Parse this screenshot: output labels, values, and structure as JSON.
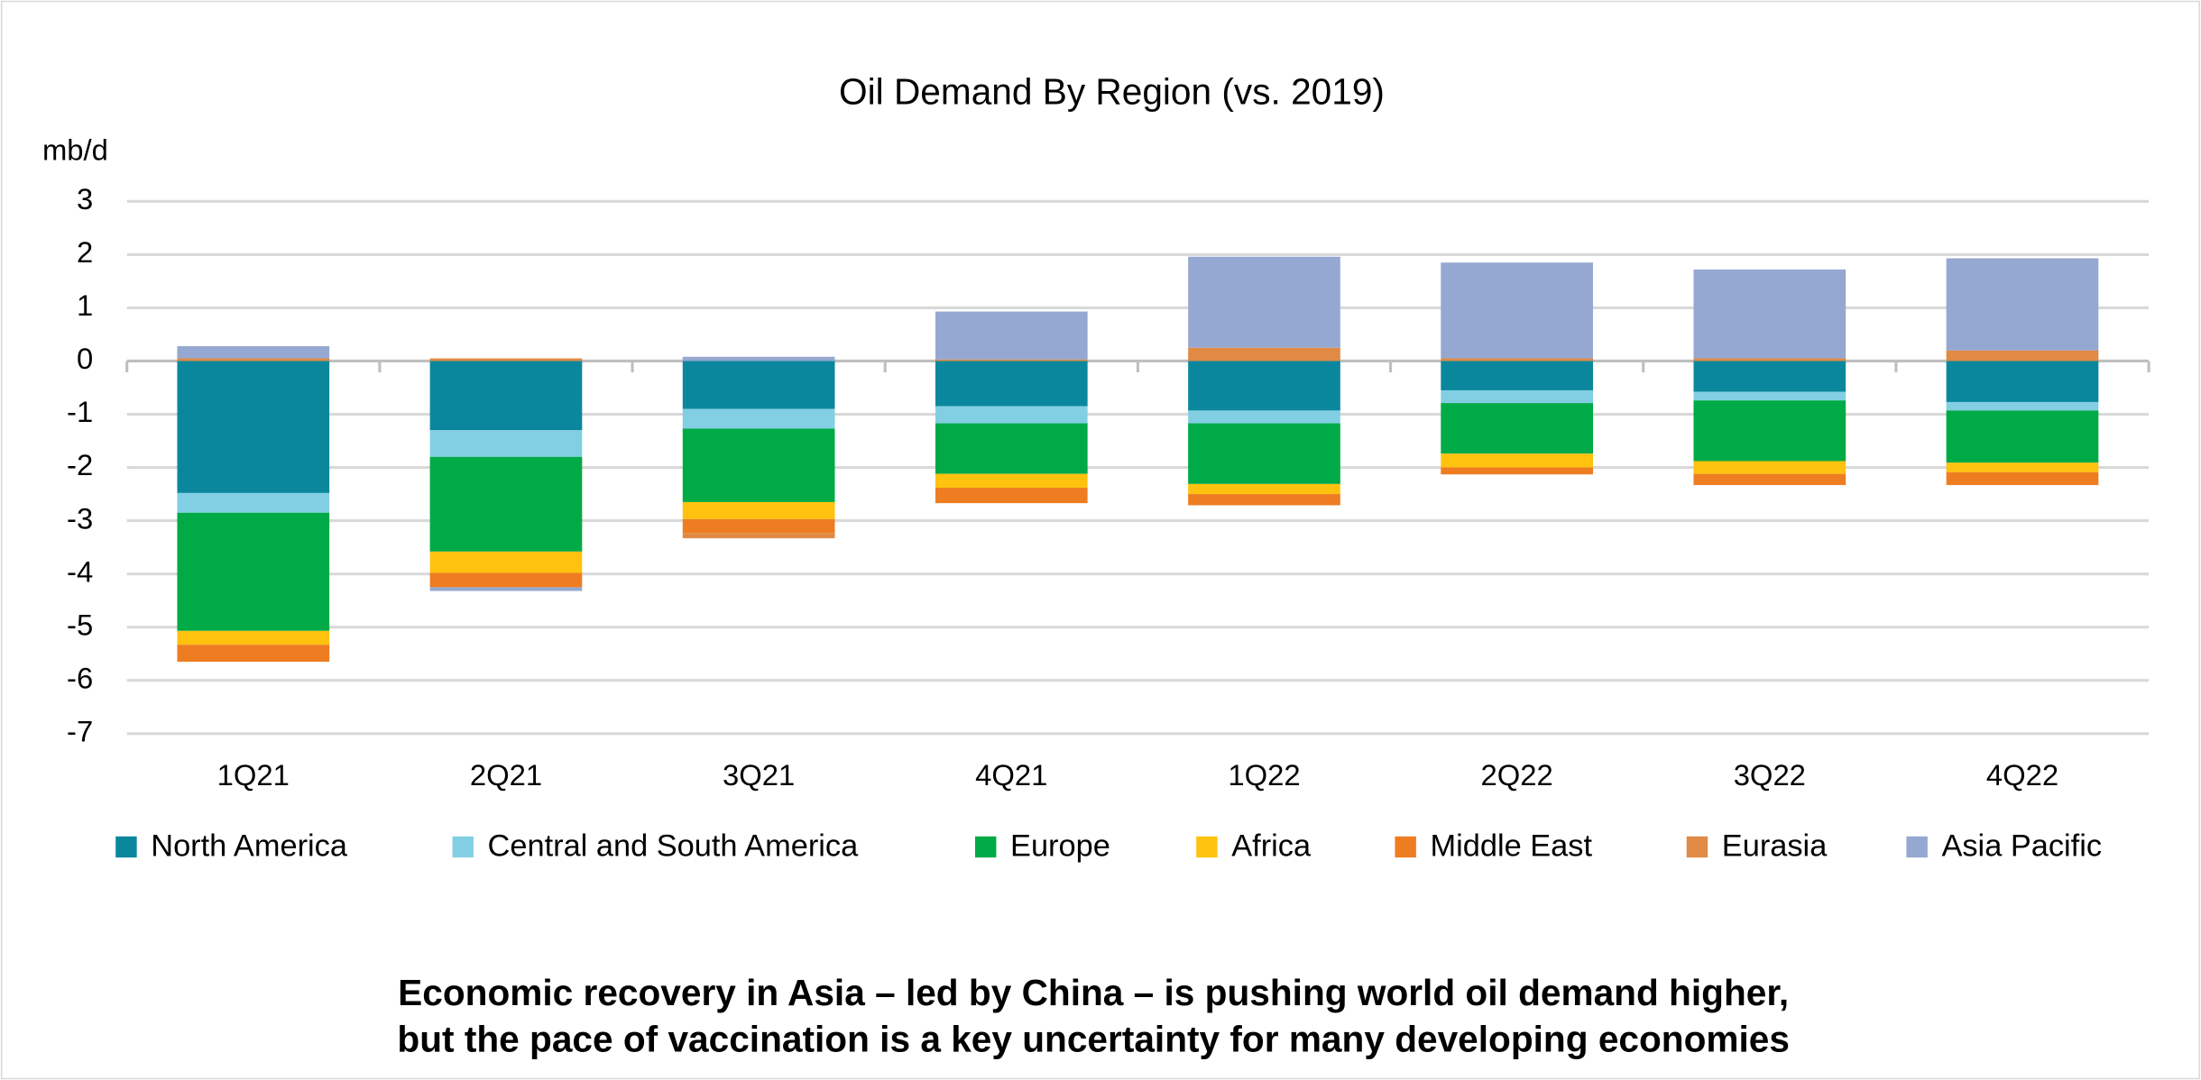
{
  "chart_data": {
    "type": "stacked_bar",
    "title": "Oil Demand By Region (vs. 2019)",
    "y_label": "mb/d",
    "subtitle_lines": [
      "Economic recovery in Asia – led by China – is pushing world oil demand higher,",
      "but the pace of vaccination is a key uncertainty for many developing economies"
    ],
    "categories": [
      "1Q21",
      "2Q21",
      "3Q21",
      "4Q21",
      "1Q22",
      "2Q22",
      "3Q22",
      "4Q22"
    ],
    "series": [
      {
        "name": "North America",
        "color": "#0a879d",
        "values": [
          -2.48,
          -1.3,
          -0.9,
          -0.85,
          -0.93,
          -0.55,
          -0.58,
          -0.77
        ]
      },
      {
        "name": "Central and South America",
        "color": "#82cfe3",
        "values": [
          -0.37,
          -0.5,
          -0.37,
          -0.32,
          -0.24,
          -0.24,
          -0.16,
          -0.16
        ]
      },
      {
        "name": "Europe",
        "color": "#00aa46",
        "values": [
          -2.22,
          -1.78,
          -1.38,
          -0.95,
          -1.14,
          -0.95,
          -1.14,
          -0.98
        ]
      },
      {
        "name": "Africa",
        "color": "#ffc20e",
        "values": [
          -0.26,
          -0.4,
          -0.32,
          -0.26,
          -0.19,
          -0.26,
          -0.24,
          -0.18
        ]
      },
      {
        "name": "Middle East",
        "color": "#ee7d22",
        "values": [
          -0.32,
          -0.27,
          -0.26,
          -0.29,
          -0.21,
          -0.13,
          -0.21,
          -0.24
        ]
      },
      {
        "name": "Eurasia",
        "color": "#e08a45",
        "values": [
          0.05,
          0.05,
          -0.1,
          0.03,
          0.25,
          0.05,
          0.05,
          0.2
        ]
      },
      {
        "name": "Asia Pacific",
        "color": "#95a8d1",
        "values": [
          0.23,
          -0.07,
          0.08,
          0.9,
          1.71,
          1.8,
          1.67,
          1.73
        ]
      }
    ],
    "ylim": [
      -7,
      3
    ],
    "yticks": [
      -7,
      -6,
      -5,
      -4,
      -3,
      -2,
      -1,
      0,
      1,
      2,
      3
    ],
    "grid": true
  }
}
